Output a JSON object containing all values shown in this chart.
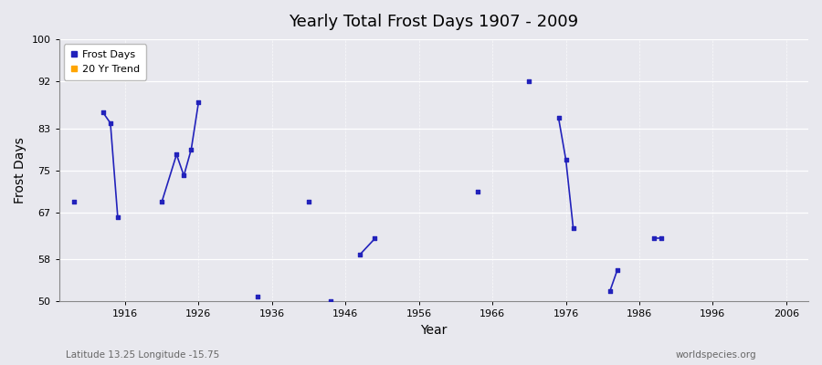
{
  "title": "Yearly Total Frost Days 1907 - 2009",
  "xlabel": "Year",
  "ylabel": "Frost Days",
  "xlim": [
    1907,
    2009
  ],
  "ylim": [
    50,
    100
  ],
  "yticks": [
    50,
    58,
    67,
    75,
    83,
    92,
    100
  ],
  "xticks": [
    1916,
    1926,
    1936,
    1946,
    1956,
    1966,
    1976,
    1986,
    1996,
    2006
  ],
  "bg_color": "#e8e8ee",
  "grid_color": "#ffffff",
  "point_color": "#2222bb",
  "trend_color": "#ffa500",
  "subtitle_lat": "Latitude 13.25 Longitude -15.75",
  "watermark": "worldspecies.org",
  "frost_days": [
    [
      1909,
      69
    ],
    [
      1913,
      86
    ],
    [
      1914,
      84
    ],
    [
      1915,
      66
    ],
    [
      1921,
      69
    ],
    [
      1923,
      78
    ],
    [
      1924,
      74
    ],
    [
      1925,
      79
    ],
    [
      1926,
      88
    ],
    [
      1934,
      51
    ],
    [
      1941,
      69
    ],
    [
      1944,
      50
    ],
    [
      1948,
      59
    ],
    [
      1950,
      62
    ],
    [
      1964,
      71
    ],
    [
      1971,
      92
    ],
    [
      1975,
      85
    ],
    [
      1976,
      77
    ],
    [
      1977,
      64
    ],
    [
      1982,
      52
    ],
    [
      1983,
      56
    ],
    [
      1988,
      62
    ],
    [
      1989,
      62
    ]
  ]
}
